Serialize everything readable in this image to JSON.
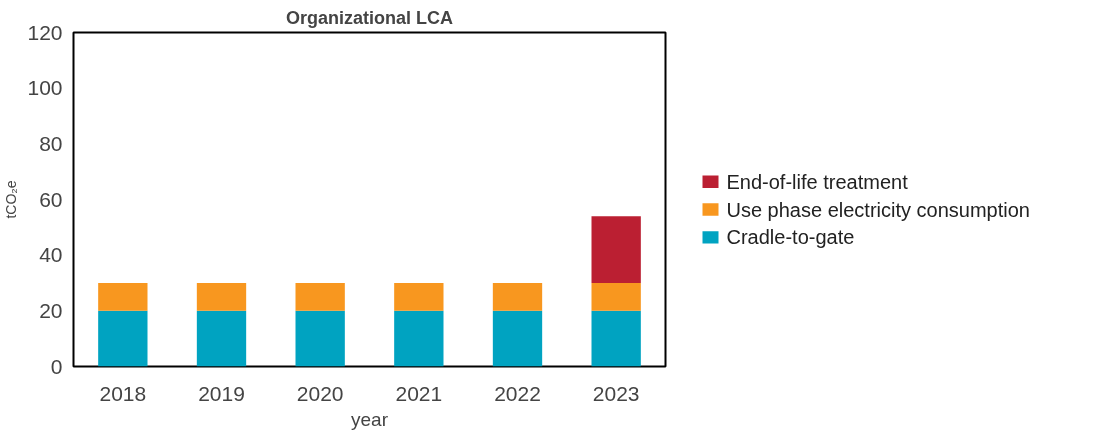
{
  "chart_data": {
    "type": "bar",
    "title": "Organizational LCA",
    "xlabel": "year",
    "ylabel": "tCO₂e",
    "categories": [
      "2018",
      "2019",
      "2020",
      "2021",
      "2022",
      "2023"
    ],
    "stacked": true,
    "series": [
      {
        "name": "Cradle-to-gate",
        "color": "#00a3c1",
        "values": [
          20,
          20,
          20,
          20,
          20,
          20
        ]
      },
      {
        "name": "Use phase electricity consumption",
        "color": "#f8971f",
        "values": [
          10,
          10,
          10,
          10,
          10,
          10
        ]
      },
      {
        "name": "End-of-life treatment",
        "color": "#bb1f32",
        "values": [
          null,
          null,
          null,
          null,
          null,
          24
        ]
      }
    ],
    "ylim": [
      0,
      120
    ],
    "yticks": [
      0,
      20,
      40,
      60,
      80,
      100,
      120
    ],
    "grid": false,
    "legend": "right"
  }
}
